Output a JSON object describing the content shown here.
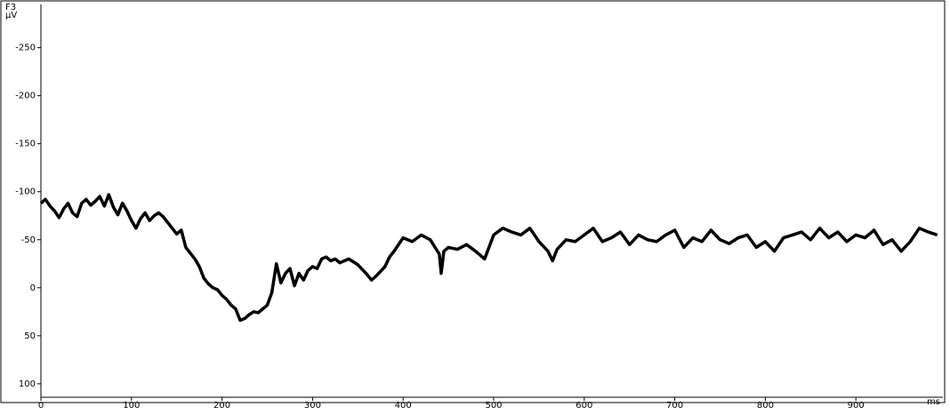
{
  "chart_data": {
    "type": "line",
    "channel": "F3",
    "y_unit": "µV",
    "x_unit": "ms",
    "x": [
      0,
      5,
      10,
      15,
      20,
      25,
      30,
      35,
      40,
      45,
      50,
      55,
      60,
      65,
      70,
      75,
      80,
      85,
      90,
      95,
      100,
      105,
      110,
      115,
      120,
      125,
      130,
      135,
      140,
      145,
      150,
      155,
      160,
      165,
      170,
      175,
      180,
      185,
      190,
      195,
      200,
      205,
      210,
      215,
      220,
      225,
      230,
      235,
      240,
      245,
      250,
      255,
      260,
      265,
      270,
      275,
      280,
      285,
      290,
      295,
      300,
      305,
      310,
      315,
      320,
      325,
      330,
      340,
      350,
      360,
      365,
      370,
      380,
      385,
      390,
      400,
      410,
      420,
      430,
      440,
      442,
      445,
      450,
      460,
      470,
      480,
      490,
      500,
      510,
      520,
      530,
      540,
      550,
      560,
      565,
      570,
      580,
      590,
      600,
      610,
      620,
      630,
      640,
      650,
      660,
      670,
      680,
      690,
      700,
      710,
      720,
      730,
      740,
      750,
      760,
      770,
      780,
      790,
      800,
      810,
      820,
      830,
      840,
      850,
      860,
      870,
      880,
      890,
      900,
      910,
      920,
      930,
      940,
      950,
      960,
      970,
      980,
      990
    ],
    "series": [
      {
        "name": "F3",
        "color": "#000000",
        "values": [
          -88,
          -92,
          -85,
          -80,
          -73,
          -82,
          -88,
          -78,
          -74,
          -88,
          -92,
          -86,
          -90,
          -95,
          -85,
          -97,
          -84,
          -76,
          -88,
          -80,
          -70,
          -62,
          -72,
          -78,
          -70,
          -75,
          -78,
          -74,
          -68,
          -62,
          -56,
          -60,
          -42,
          -36,
          -30,
          -22,
          -10,
          -4,
          0,
          2,
          8,
          12,
          18,
          22,
          34,
          32,
          28,
          25,
          26,
          22,
          18,
          5,
          -25,
          -5,
          -15,
          -20,
          -2,
          -15,
          -8,
          -18,
          -22,
          -20,
          -30,
          -32,
          -28,
          -30,
          -26,
          -30,
          -24,
          -14,
          -8,
          -12,
          -22,
          -32,
          -38,
          -52,
          -48,
          -55,
          -50,
          -35,
          -15,
          -38,
          -42,
          -40,
          -45,
          -38,
          -30,
          -55,
          -62,
          -58,
          -55,
          -62,
          -48,
          -38,
          -28,
          -40,
          -50,
          -48,
          -55,
          -62,
          -48,
          -52,
          -58,
          -45,
          -55,
          -50,
          -48,
          -55,
          -60,
          -42,
          -52,
          -48,
          -60,
          -50,
          -46,
          -52,
          -55,
          -42,
          -48,
          -38,
          -52,
          -55,
          -58,
          -50,
          -62,
          -52,
          -58,
          -48,
          -55,
          -52,
          -60,
          -45,
          -50,
          -38,
          -48,
          -62,
          -58,
          -55
        ]
      }
    ],
    "xlim": [
      0,
      1000
    ],
    "ylim": [
      -295,
      114
    ],
    "inverted_y": true,
    "xticks": [
      0,
      100,
      200,
      300,
      400,
      500,
      600,
      700,
      800,
      900
    ],
    "yticks": [
      -250,
      -200,
      -150,
      -100,
      -50,
      0,
      50,
      100
    ]
  }
}
